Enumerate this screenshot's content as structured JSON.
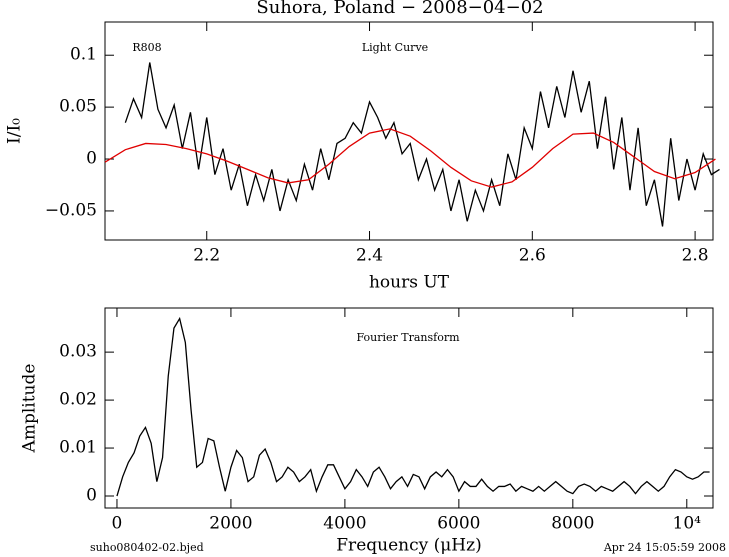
{
  "chart_data": [
    {
      "type": "line",
      "title": "Suhora, Poland − 2008−04−02",
      "xlabel": "hours UT",
      "ylabel": "I/I₀",
      "annotations": [
        "R808",
        "Light Curve"
      ],
      "xlim": [
        2.075,
        2.822
      ],
      "ylim": [
        -0.078,
        0.132
      ],
      "xticks": [
        2.2,
        2.4,
        2.6,
        2.8
      ],
      "yticks": [
        {
          "value": -0.05,
          "label": "−0.05"
        },
        0,
        0.05,
        0.1
      ],
      "series": [
        {
          "color": "#000000",
          "x": [
            2.1,
            2.11,
            2.12,
            2.13,
            2.14,
            2.15,
            2.16,
            2.17,
            2.18,
            2.19,
            2.2,
            2.21,
            2.22,
            2.23,
            2.24,
            2.25,
            2.26,
            2.27,
            2.28,
            2.29,
            2.3,
            2.31,
            2.32,
            2.33,
            2.34,
            2.35,
            2.36,
            2.37,
            2.38,
            2.39,
            2.4,
            2.41,
            2.42,
            2.43,
            2.44,
            2.45,
            2.46,
            2.47,
            2.48,
            2.49,
            2.5,
            2.51,
            2.52,
            2.53,
            2.54,
            2.55,
            2.56,
            2.57,
            2.58,
            2.59,
            2.6,
            2.61,
            2.62,
            2.63,
            2.64,
            2.65,
            2.66,
            2.67,
            2.68,
            2.69,
            2.7,
            2.71,
            2.72,
            2.73,
            2.74,
            2.75,
            2.76,
            2.77,
            2.78,
            2.79,
            2.8,
            2.81,
            2.82,
            2.83
          ],
          "values": [
            0.035,
            0.058,
            0.04,
            0.093,
            0.048,
            0.03,
            0.052,
            0.01,
            0.045,
            -0.01,
            0.04,
            -0.015,
            0.01,
            -0.03,
            -0.005,
            -0.045,
            -0.015,
            -0.04,
            -0.01,
            -0.05,
            -0.02,
            -0.04,
            -0.005,
            -0.03,
            0.01,
            -0.02,
            0.015,
            0.02,
            0.035,
            0.025,
            0.055,
            0.04,
            0.02,
            0.035,
            0.005,
            0.015,
            -0.02,
            0.0,
            -0.03,
            -0.01,
            -0.05,
            -0.02,
            -0.06,
            -0.03,
            -0.05,
            -0.02,
            -0.045,
            0.005,
            -0.02,
            0.03,
            0.01,
            0.065,
            0.03,
            0.07,
            0.04,
            0.085,
            0.045,
            0.075,
            0.01,
            0.06,
            -0.01,
            0.04,
            -0.03,
            0.03,
            -0.045,
            -0.02,
            -0.065,
            0.02,
            -0.04,
            0.0,
            -0.03,
            0.005,
            -0.015,
            -0.01
          ]
        },
        {
          "color": "#e00000",
          "x": [
            2.075,
            2.1,
            2.125,
            2.15,
            2.175,
            2.2,
            2.225,
            2.25,
            2.275,
            2.3,
            2.325,
            2.35,
            2.375,
            2.4,
            2.425,
            2.45,
            2.475,
            2.5,
            2.525,
            2.55,
            2.575,
            2.6,
            2.625,
            2.65,
            2.675,
            2.7,
            2.725,
            2.75,
            2.775,
            2.8,
            2.825
          ],
          "values": [
            -0.003,
            0.009,
            0.015,
            0.014,
            0.01,
            0.005,
            -0.002,
            -0.01,
            -0.018,
            -0.023,
            -0.02,
            -0.005,
            0.012,
            0.025,
            0.029,
            0.022,
            0.008,
            -0.008,
            -0.021,
            -0.027,
            -0.022,
            -0.008,
            0.01,
            0.024,
            0.025,
            0.016,
            0.002,
            -0.012,
            -0.019,
            -0.013,
            0.0
          ]
        }
      ]
    },
    {
      "type": "line",
      "xlabel": "Frequency (μHz)",
      "ylabel": "Amplitude",
      "annotations": [
        "Fourier Transform"
      ],
      "xlim": [
        -210,
        10460
      ],
      "ylim": [
        -0.0025,
        0.0392
      ],
      "xticks": [
        0,
        2000,
        4000,
        6000,
        8000,
        {
          "value": 10000,
          "label": "10⁴"
        }
      ],
      "yticks": [
        0,
        0.01,
        0.02,
        0.03
      ],
      "series": [
        {
          "color": "#000000",
          "x": [
            0,
            100,
            200,
            300,
            400,
            500,
            600,
            700,
            800,
            900,
            1000,
            1100,
            1200,
            1300,
            1400,
            1500,
            1600,
            1700,
            1800,
            1900,
            2000,
            2100,
            2200,
            2300,
            2400,
            2500,
            2600,
            2700,
            2800,
            2900,
            3000,
            3100,
            3200,
            3300,
            3400,
            3500,
            3600,
            3700,
            3800,
            3900,
            4000,
            4100,
            4200,
            4300,
            4400,
            4500,
            4600,
            4700,
            4800,
            4900,
            5000,
            5100,
            5200,
            5300,
            5400,
            5500,
            5600,
            5700,
            5800,
            5900,
            6000,
            6100,
            6200,
            6300,
            6400,
            6500,
            6600,
            6700,
            6800,
            6900,
            7000,
            7100,
            7200,
            7300,
            7400,
            7500,
            7600,
            7700,
            7800,
            7900,
            8000,
            8100,
            8200,
            8300,
            8400,
            8500,
            8600,
            8700,
            8800,
            8900,
            9000,
            9100,
            9200,
            9300,
            9400,
            9500,
            9600,
            9700,
            9800,
            9900,
            10000,
            10100,
            10200,
            10300,
            10400
          ],
          "values": [
            0,
            0.004,
            0.007,
            0.009,
            0.0125,
            0.0143,
            0.011,
            0.003,
            0.008,
            0.025,
            0.035,
            0.037,
            0.032,
            0.018,
            0.006,
            0.007,
            0.012,
            0.0115,
            0.006,
            0.001,
            0.006,
            0.0095,
            0.008,
            0.003,
            0.004,
            0.0085,
            0.0098,
            0.007,
            0.003,
            0.004,
            0.006,
            0.005,
            0.003,
            0.004,
            0.0055,
            0.001,
            0.004,
            0.0065,
            0.0065,
            0.004,
            0.0015,
            0.003,
            0.0055,
            0.004,
            0.002,
            0.005,
            0.006,
            0.004,
            0.0015,
            0.003,
            0.004,
            0.002,
            0.0045,
            0.004,
            0.0015,
            0.004,
            0.005,
            0.004,
            0.0055,
            0.004,
            0.001,
            0.003,
            0.002,
            0.002,
            0.0035,
            0.002,
            0.001,
            0.002,
            0.002,
            0.0025,
            0.001,
            0.002,
            0.0015,
            0.001,
            0.002,
            0.001,
            0.002,
            0.003,
            0.002,
            0.001,
            0.0005,
            0.002,
            0.0025,
            0.002,
            0.001,
            0.002,
            0.0015,
            0.001,
            0.002,
            0.003,
            0.002,
            0.0005,
            0.002,
            0.003,
            0.002,
            0.001,
            0.002,
            0.004,
            0.0055,
            0.005,
            0.004,
            0.0035,
            0.004,
            0.005,
            0.005
          ]
        }
      ]
    }
  ],
  "footer": {
    "left": "suho080402-02.bjed",
    "right": "Apr 24 15:05:59 2008"
  }
}
